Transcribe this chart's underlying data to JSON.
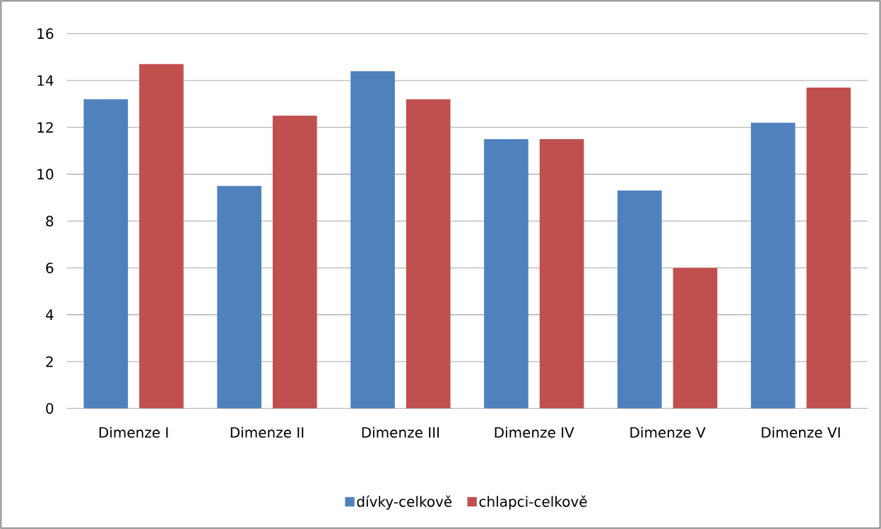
{
  "chart_data": {
    "type": "bar",
    "categories": [
      "Dimenze I",
      "Dimenze II",
      "Dimenze III",
      "Dimenze IV",
      "Dimenze V",
      "Dimenze VI"
    ],
    "series": [
      {
        "name": "dívky-celkově",
        "color": "#4f81bd",
        "values": [
          13.2,
          9.5,
          14.4,
          11.5,
          9.3,
          12.2
        ]
      },
      {
        "name": "chlapci-celkově",
        "color": "#c0504d",
        "values": [
          14.7,
          12.5,
          13.2,
          11.5,
          6.0,
          13.7
        ]
      }
    ],
    "ylim": [
      0,
      16
    ],
    "yticks": [
      0,
      2,
      4,
      6,
      8,
      10,
      12,
      14,
      16
    ],
    "grid": "y",
    "legend": "bottom"
  }
}
